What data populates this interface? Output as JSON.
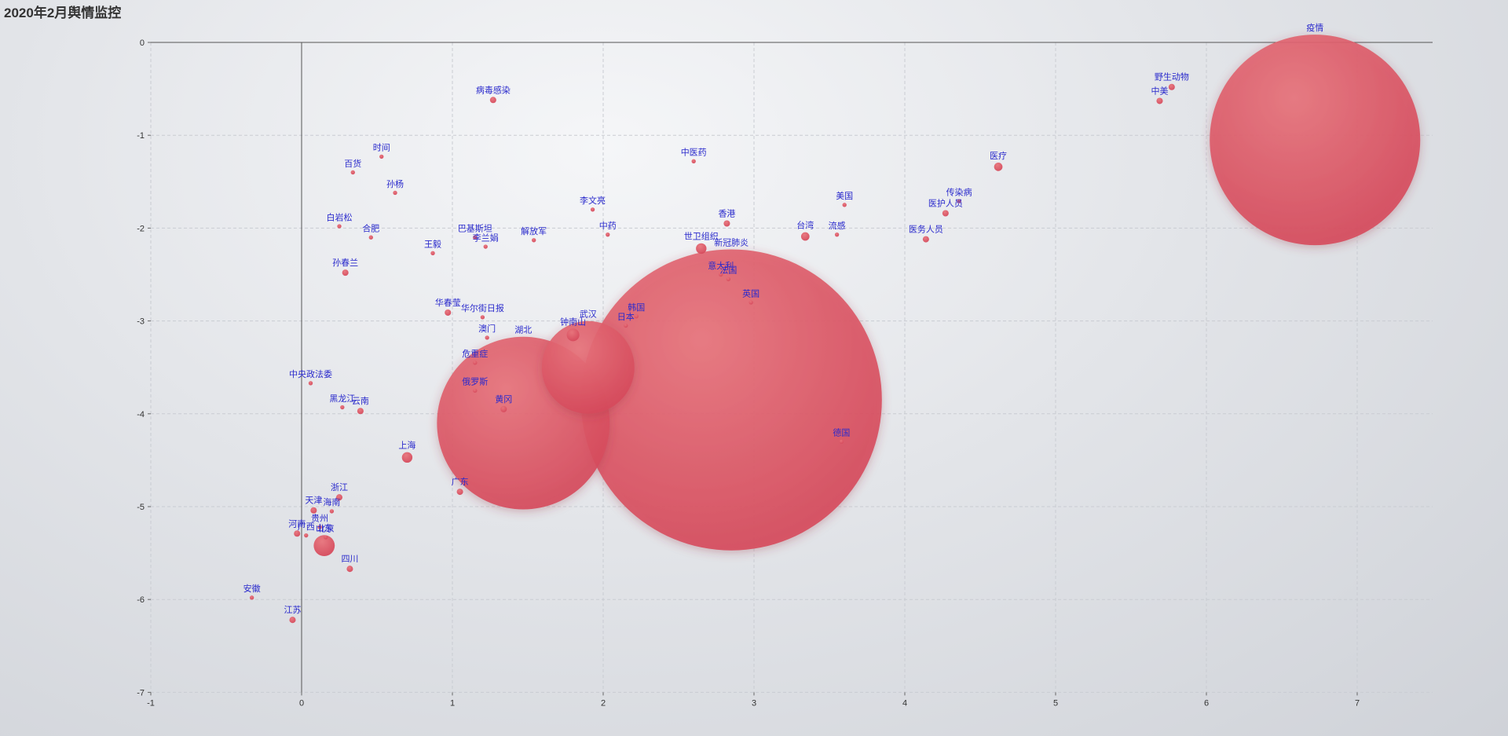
{
  "title": "2020年2月舆情监控",
  "chart_data": {
    "type": "scatter",
    "title": "2020年2月舆情监控",
    "xlabel": "",
    "ylabel": "",
    "xlim": [
      -1,
      7.5
    ],
    "ylim": [
      -7,
      0
    ],
    "x_ticks": [
      "-1",
      "0",
      "1",
      "2",
      "3",
      "4",
      "5",
      "6",
      "7"
    ],
    "y_ticks": [
      "0",
      "-1",
      "-2",
      "-3",
      "-4",
      "-5",
      "-6",
      "-7"
    ],
    "grid": true,
    "legend": "none",
    "bubble_color": "#e04f5f",
    "label_color": "#2a2acc",
    "points": [
      {
        "name": "疫情",
        "x": 6.72,
        "y": -1.05,
        "size": 100
      },
      {
        "name": "新冠肺炎",
        "x": 2.85,
        "y": -3.85,
        "size": 143
      },
      {
        "name": "湖北",
        "x": 1.47,
        "y": -4.1,
        "size": 82
      },
      {
        "name": "武汉",
        "x": 1.9,
        "y": -3.5,
        "size": 44
      },
      {
        "name": "钟南山",
        "x": 1.8,
        "y": -3.15,
        "size": 6
      },
      {
        "name": "山东",
        "x": 0.15,
        "y": -5.42,
        "size": 10
      },
      {
        "name": "野生动物",
        "x": 5.77,
        "y": -0.48,
        "size": 3
      },
      {
        "name": "中美",
        "x": 5.69,
        "y": -0.63,
        "size": 3
      },
      {
        "name": "医疗",
        "x": 4.62,
        "y": -1.34,
        "size": 4
      },
      {
        "name": "传染病",
        "x": 4.36,
        "y": -1.71,
        "size": 2
      },
      {
        "name": "医护人员",
        "x": 4.27,
        "y": -1.84,
        "size": 3
      },
      {
        "name": "医务人员",
        "x": 4.14,
        "y": -2.12,
        "size": 3
      },
      {
        "name": "美国",
        "x": 3.6,
        "y": -1.75,
        "size": 2
      },
      {
        "name": "流感",
        "x": 3.55,
        "y": -2.07,
        "size": 2
      },
      {
        "name": "台湾",
        "x": 3.34,
        "y": -2.09,
        "size": 4
      },
      {
        "name": "中医药",
        "x": 2.6,
        "y": -1.28,
        "size": 2
      },
      {
        "name": "香港",
        "x": 2.82,
        "y": -1.95,
        "size": 3
      },
      {
        "name": "世卫组织",
        "x": 2.65,
        "y": -2.22,
        "size": 5
      },
      {
        "name": "李文亮",
        "x": 1.93,
        "y": -1.8,
        "size": 2
      },
      {
        "name": "中药",
        "x": 2.03,
        "y": -2.07,
        "size": 2
      },
      {
        "name": "解放军",
        "x": 1.54,
        "y": -2.13,
        "size": 2
      },
      {
        "name": "病毒感染",
        "x": 1.27,
        "y": -0.62,
        "size": 3
      },
      {
        "name": "巴基斯坦",
        "x": 1.15,
        "y": -2.1,
        "size": 2
      },
      {
        "name": "李兰娟",
        "x": 1.22,
        "y": -2.2,
        "size": 2
      },
      {
        "name": "韩国",
        "x": 2.22,
        "y": -2.95,
        "size": 2
      },
      {
        "name": "日本",
        "x": 2.15,
        "y": -3.05,
        "size": 2
      },
      {
        "name": "英国",
        "x": 2.98,
        "y": -2.8,
        "size": 2
      },
      {
        "name": "法国",
        "x": 2.83,
        "y": -2.55,
        "size": 2
      },
      {
        "name": "意大利",
        "x": 2.78,
        "y": -2.5,
        "size": 2
      },
      {
        "name": "德国",
        "x": 3.58,
        "y": -4.3,
        "size": 2
      },
      {
        "name": "华春莹",
        "x": 0.97,
        "y": -2.91,
        "size": 3
      },
      {
        "name": "华尔街日报",
        "x": 1.2,
        "y": -2.96,
        "size": 2
      },
      {
        "name": "澳门",
        "x": 1.23,
        "y": -3.18,
        "size": 2
      },
      {
        "name": "危重症",
        "x": 1.15,
        "y": -3.45,
        "size": 2
      },
      {
        "name": "俄罗斯",
        "x": 1.15,
        "y": -3.75,
        "size": 2
      },
      {
        "name": "黄冈",
        "x": 1.34,
        "y": -3.95,
        "size": 3
      },
      {
        "name": "广东",
        "x": 1.05,
        "y": -4.84,
        "size": 3
      },
      {
        "name": "上海",
        "x": 0.7,
        "y": -4.47,
        "size": 5
      },
      {
        "name": "时间",
        "x": 0.53,
        "y": -1.23,
        "size": 2
      },
      {
        "name": "百货",
        "x": 0.34,
        "y": -1.4,
        "size": 2
      },
      {
        "name": "孙杨",
        "x": 0.62,
        "y": -1.62,
        "size": 2
      },
      {
        "name": "白岩松",
        "x": 0.25,
        "y": -1.98,
        "size": 2
      },
      {
        "name": "合肥",
        "x": 0.46,
        "y": -2.1,
        "size": 2
      },
      {
        "name": "王毅",
        "x": 0.87,
        "y": -2.27,
        "size": 2
      },
      {
        "name": "孙春兰",
        "x": 0.29,
        "y": -2.48,
        "size": 3
      },
      {
        "name": "中央政法委",
        "x": 0.06,
        "y": -3.67,
        "size": 2
      },
      {
        "name": "黑龙江",
        "x": 0.27,
        "y": -3.93,
        "size": 2
      },
      {
        "name": "云南",
        "x": 0.39,
        "y": -3.97,
        "size": 3
      },
      {
        "name": "浙江",
        "x": 0.25,
        "y": -4.9,
        "size": 3
      },
      {
        "name": "天津",
        "x": 0.08,
        "y": -5.04,
        "size": 3
      },
      {
        "name": "海南",
        "x": 0.2,
        "y": -5.05,
        "size": 2
      },
      {
        "name": "贵州",
        "x": 0.12,
        "y": -5.22,
        "size": 2
      },
      {
        "name": "河南",
        "x": -0.03,
        "y": -5.29,
        "size": 3
      },
      {
        "name": "广西",
        "x": 0.03,
        "y": -5.31,
        "size": 2
      },
      {
        "name": "北京",
        "x": 0.16,
        "y": -5.33,
        "size": 2
      },
      {
        "name": "四川",
        "x": 0.32,
        "y": -5.67,
        "size": 3
      },
      {
        "name": "安徽",
        "x": -0.33,
        "y": -5.98,
        "size": 2
      },
      {
        "name": "江苏",
        "x": -0.06,
        "y": -6.22,
        "size": 3
      }
    ]
  }
}
